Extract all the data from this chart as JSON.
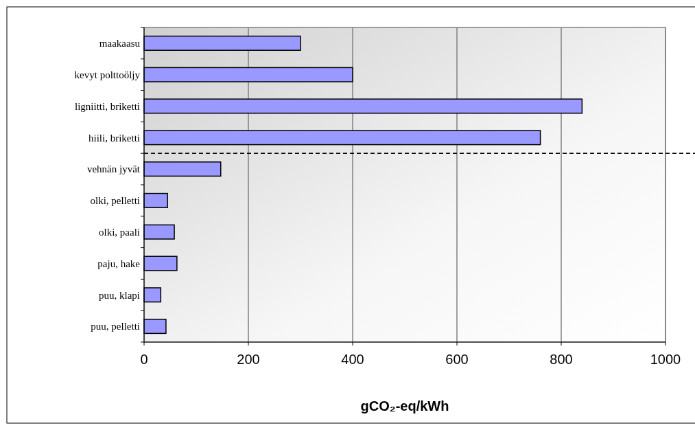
{
  "chart_data": {
    "type": "bar",
    "orientation": "horizontal",
    "xlabel": "gCO₂-eq/kWh",
    "categories": [
      "maakaasu",
      "kevyt polttoöljy",
      "ligniitti, briketti",
      "hiili, briketti",
      "vehnän jyvät",
      "olki, pelletti",
      "olki, paali",
      "paju, hake",
      "puu, klapi",
      "puu, pelletti"
    ],
    "values": [
      300,
      400,
      840,
      760,
      147,
      45,
      58,
      63,
      32,
      42
    ],
    "color": "#9999ff",
    "xlim": [
      0,
      1000
    ],
    "xticks": [
      0,
      200,
      400,
      600,
      800,
      1000
    ],
    "grid": "x"
  }
}
